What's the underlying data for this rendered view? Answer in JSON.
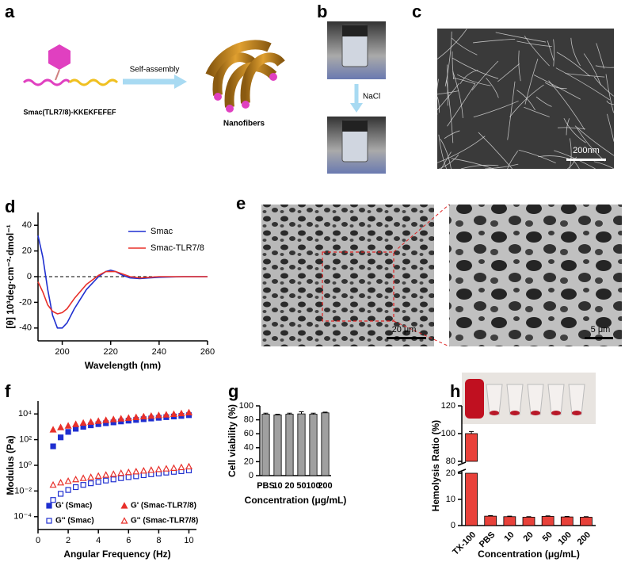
{
  "panel_labels": [
    "a",
    "b",
    "c",
    "d",
    "e",
    "f",
    "g",
    "h"
  ],
  "schematic": {
    "peptide": "Smac(TLR7/8)-KKEKFEFEF",
    "arrow": "Self-assembly",
    "product": "Nanofibers"
  },
  "vials": {
    "arrow": "NaCl"
  },
  "tem": {
    "scale": "200nm"
  },
  "sem": {
    "scale_left": "20 μm",
    "scale_right": "5 μm"
  },
  "chart_data": [
    {
      "type": "line",
      "x_label": "Wavelength (nm)",
      "y_label": "[θ] 10³deg·cm⁻²·dmol⁻¹",
      "x": [
        190,
        192,
        194,
        196,
        198,
        200,
        202,
        205,
        210,
        215,
        218,
        220,
        222,
        225,
        228,
        232,
        236,
        240,
        250,
        260
      ],
      "series": [
        {
          "name": "Smac",
          "color": "#1f2fd0",
          "values": [
            32,
            15,
            -10,
            -30,
            -40,
            -40,
            -36,
            -25,
            -10,
            0,
            4,
            5,
            4,
            1,
            -1,
            -1.5,
            -1,
            -0.5,
            0,
            0
          ]
        },
        {
          "name": "Smac-TLR7/8",
          "color": "#e8302a",
          "values": [
            -4,
            -12,
            -22,
            -27,
            -29,
            -28,
            -25,
            -17,
            -6,
            1,
            4,
            4,
            4,
            2,
            0,
            -1,
            -0.5,
            0,
            0,
            0
          ]
        }
      ],
      "xlim": [
        190,
        260
      ],
      "xticks": [
        200,
        220,
        240,
        260
      ],
      "ylim": [
        -50,
        50
      ],
      "yticks": [
        -40,
        -20,
        0,
        20,
        40
      ],
      "hline": 0,
      "legend": "upper right"
    },
    {
      "type": "scatter",
      "x_label": "Angular Frequency (Hz)",
      "y_label": "Modulus (Pa)",
      "log_y": true,
      "x": [
        1,
        1.5,
        2,
        2.5,
        3,
        3.5,
        4,
        4.5,
        5,
        5.5,
        6,
        6.5,
        7,
        7.5,
        8,
        8.5,
        9,
        9.5,
        10
      ],
      "series": [
        {
          "name": "G' (Smac)",
          "color": "#1f2fd0",
          "marker": "square",
          "filled": true,
          "values": [
            30,
            150,
            400,
            700,
            1000,
            1300,
            1600,
            1900,
            2200,
            2600,
            3000,
            3400,
            3900,
            4400,
            5000,
            5600,
            6300,
            7000,
            8000
          ]
        },
        {
          "name": "G' (Smac-TLR7/8)",
          "color": "#e8302a",
          "marker": "triangle",
          "filled": true,
          "values": [
            600,
            900,
            1200,
            1600,
            2000,
            2400,
            2800,
            3300,
            3800,
            4300,
            4900,
            5500,
            6200,
            7000,
            7800,
            8700,
            9700,
            11000,
            13000
          ]
        },
        {
          "name": "G'' (Smac)",
          "color": "#1f2fd0",
          "marker": "square",
          "filled": false,
          "values": [
            0.002,
            0.006,
            0.012,
            0.02,
            0.03,
            0.04,
            0.05,
            0.065,
            0.08,
            0.1,
            0.12,
            0.14,
            0.17,
            0.2,
            0.23,
            0.27,
            0.31,
            0.35,
            0.4
          ]
        },
        {
          "name": "G'' (Smac-TLR7/8)",
          "color": "#e8302a",
          "marker": "triangle",
          "filled": false,
          "values": [
            0.03,
            0.045,
            0.06,
            0.08,
            0.1,
            0.12,
            0.15,
            0.18,
            0.21,
            0.25,
            0.29,
            0.33,
            0.38,
            0.43,
            0.49,
            0.55,
            0.62,
            0.7,
            0.8
          ]
        }
      ],
      "xlim": [
        0,
        10.5
      ],
      "xticks": [
        0,
        2,
        4,
        6,
        8,
        10
      ],
      "ylim": [
        1e-05,
        100000
      ],
      "yticks": [
        {
          "value": 0.0001,
          "label": "10⁻⁴"
        },
        {
          "value": 0.01,
          "label": "10⁻²"
        },
        {
          "value": 1,
          "label": "10⁰"
        },
        {
          "value": 100,
          "label": "10²"
        },
        {
          "value": 10000,
          "label": "10⁴"
        }
      ],
      "legend": "lower left"
    },
    {
      "type": "bar",
      "x_label": "Concentration (μg/mL)",
      "y_label": "Cell viability (%)",
      "color": "#a0a0a0",
      "categories": [
        "PBS",
        "10",
        "20",
        "50",
        "100",
        "200"
      ],
      "values": [
        88,
        87,
        88,
        88.5,
        88,
        90
      ],
      "errors": [
        1.5,
        1,
        1.5,
        3,
        1.5,
        1
      ],
      "ylim": [
        0,
        100
      ],
      "yticks": [
        0,
        20,
        40,
        60,
        80,
        100
      ]
    },
    {
      "type": "bar",
      "x_label": "Concentration (μg/mL)",
      "y_label": "Hemolysis Ratio (%)",
      "color": "#e8413a",
      "categories": [
        "TX-100",
        "PBS",
        "10",
        "20",
        "50",
        "100",
        "200"
      ],
      "values": [
        100,
        3.6,
        3.4,
        3.2,
        3.5,
        3.3,
        3.2
      ],
      "errors": [
        1.5,
        0.2,
        0.2,
        0.2,
        0.2,
        0.2,
        0.2
      ],
      "ylim": [
        0,
        120
      ],
      "ybreak": [
        20,
        80
      ],
      "yticks": [
        0,
        10,
        20,
        80,
        100,
        120
      ],
      "rotate_labels": true
    }
  ]
}
